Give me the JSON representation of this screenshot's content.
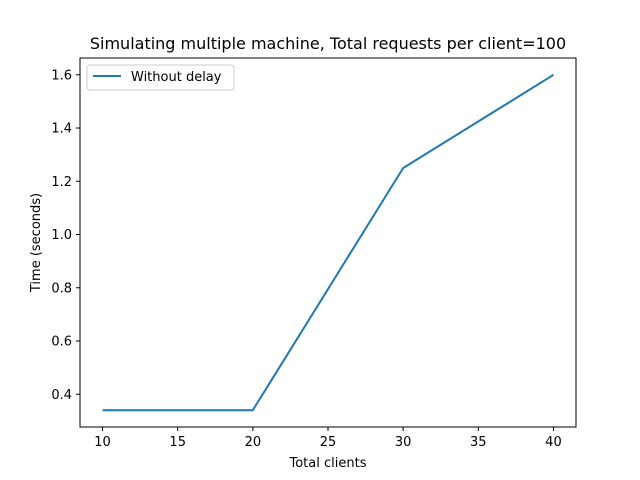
{
  "chart_data": {
    "type": "line",
    "title": "Simulating multiple machine, Total requests per client=100",
    "xlabel": "Total clients",
    "ylabel": "Time (seconds)",
    "x": [
      10,
      20,
      30,
      40
    ],
    "series": [
      {
        "name": "Without delay",
        "values": [
          0.34,
          0.34,
          1.25,
          1.6
        ],
        "color": "#1f77b4"
      }
    ],
    "xlim": [
      8.5,
      41.5
    ],
    "ylim": [
      0.277,
      1.663
    ],
    "xticks": [
      "10",
      "15",
      "20",
      "25",
      "30",
      "35",
      "40"
    ],
    "yticks": [
      "0.4",
      "0.6",
      "0.8",
      "1.0",
      "1.2",
      "1.4",
      "1.6"
    ],
    "grid": false,
    "legend_position": "top-left"
  }
}
